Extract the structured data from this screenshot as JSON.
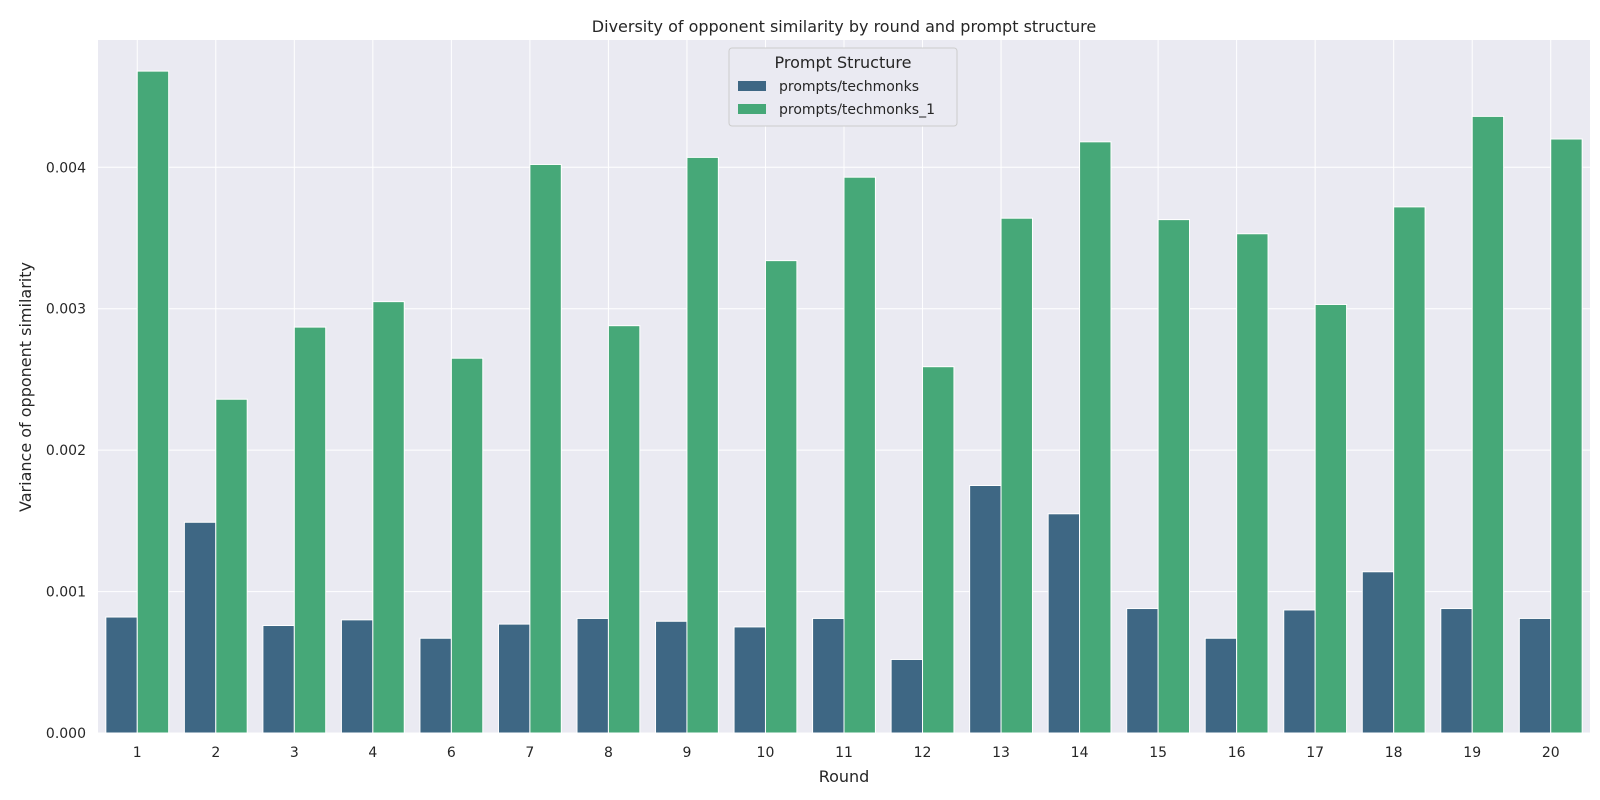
{
  "chart_data": {
    "type": "bar",
    "title": "Diversity of opponent similarity by round and prompt structure",
    "xlabel": "Round",
    "ylabel": "Variance of opponent similarity",
    "categories": [
      "1",
      "2",
      "3",
      "4",
      "6",
      "7",
      "8",
      "9",
      "10",
      "11",
      "12",
      "13",
      "14",
      "15",
      "16",
      "17",
      "18",
      "19",
      "20"
    ],
    "ylim": [
      0,
      0.0049
    ],
    "yticks": [
      "0.000",
      "0.001",
      "0.002",
      "0.003",
      "0.004"
    ],
    "ytick_values": [
      0,
      0.001,
      0.002,
      0.003,
      0.004
    ],
    "legend_title": "Prompt Structure",
    "legend_position": "top-center",
    "grid": true,
    "series": [
      {
        "name": "prompts/techmonks",
        "color": "#3e6784",
        "values": [
          0.00082,
          0.00149,
          0.00076,
          0.0008,
          0.00067,
          0.00077,
          0.00081,
          0.00079,
          0.00075,
          0.00081,
          0.00052,
          0.00175,
          0.00155,
          0.00088,
          0.00067,
          0.00087,
          0.00114,
          0.00088,
          0.00081
        ]
      },
      {
        "name": "prompts/techmonks_1",
        "color": "#46a878",
        "values": [
          0.00468,
          0.00236,
          0.00287,
          0.00305,
          0.00265,
          0.00402,
          0.00288,
          0.00407,
          0.00334,
          0.00393,
          0.00259,
          0.00364,
          0.00418,
          0.00363,
          0.00353,
          0.00303,
          0.00372,
          0.00436,
          0.0042
        ]
      }
    ],
    "colors": {
      "plot_background": "#eaeaf2",
      "grid": "#ffffff",
      "bar_edge": "#ffffff"
    }
  }
}
